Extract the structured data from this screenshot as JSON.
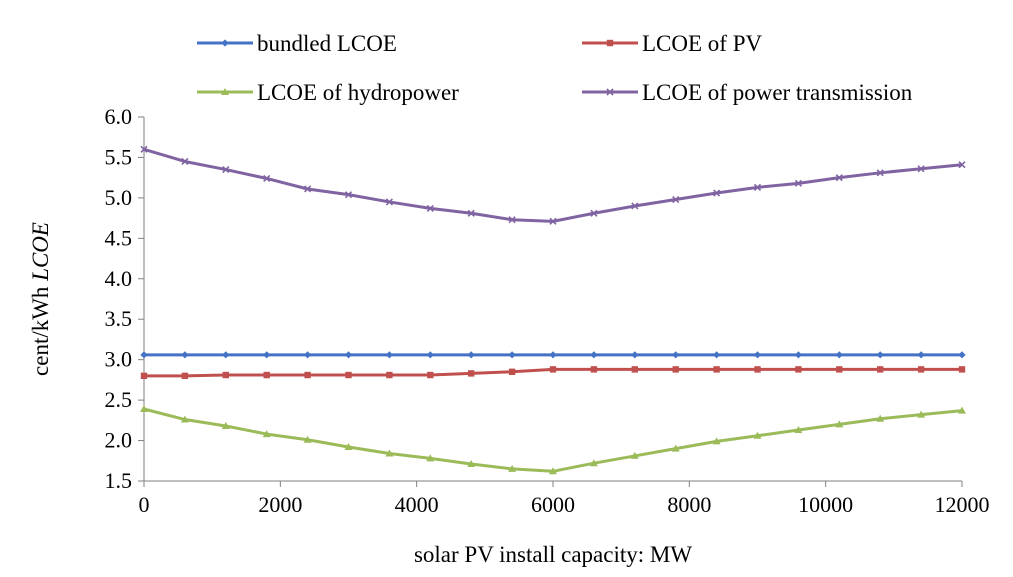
{
  "chart_data": {
    "type": "line",
    "title": "",
    "xlabel": "solar PV install capacity: MW",
    "ylabel_prefix": "cent/kWh ",
    "ylabel_italic": "LCOE",
    "x": [
      0,
      600,
      1200,
      1800,
      2400,
      3000,
      3600,
      4200,
      4800,
      5400,
      6000,
      6600,
      7200,
      7800,
      8400,
      9000,
      9600,
      10200,
      10800,
      11400,
      12000
    ],
    "xlim": [
      0,
      12000
    ],
    "ylim": [
      1.5,
      6.0
    ],
    "xticks": [
      0,
      2000,
      4000,
      6000,
      8000,
      10000,
      12000
    ],
    "yticks": [
      "1.5",
      "2.0",
      "2.5",
      "3.0",
      "3.5",
      "4.0",
      "4.5",
      "5.0",
      "5.5",
      "6.0"
    ],
    "grid": false,
    "legend_position": "top",
    "series": [
      {
        "name": "bundled LCOE",
        "color": "#4472C4",
        "marker": "diamond",
        "values": [
          3.06,
          3.06,
          3.06,
          3.06,
          3.06,
          3.06,
          3.06,
          3.06,
          3.06,
          3.06,
          3.06,
          3.06,
          3.06,
          3.06,
          3.06,
          3.06,
          3.06,
          3.06,
          3.06,
          3.06,
          3.06
        ]
      },
      {
        "name": "LCOE of PV",
        "color": "#C0504D",
        "marker": "square",
        "values": [
          2.8,
          2.8,
          2.81,
          2.81,
          2.81,
          2.81,
          2.81,
          2.81,
          2.83,
          2.85,
          2.88,
          2.88,
          2.88,
          2.88,
          2.88,
          2.88,
          2.88,
          2.88,
          2.88,
          2.88,
          2.88
        ]
      },
      {
        "name": "LCOE of hydropower",
        "color": "#9BBB59",
        "marker": "triangle",
        "values": [
          2.39,
          2.26,
          2.18,
          2.08,
          2.01,
          1.92,
          1.84,
          1.78,
          1.71,
          1.65,
          1.62,
          1.72,
          1.81,
          1.9,
          1.99,
          2.06,
          2.13,
          2.2,
          2.27,
          2.32,
          2.37
        ]
      },
      {
        "name": "LCOE of power transmission",
        "color": "#8064A2",
        "marker": "x",
        "values": [
          5.6,
          5.45,
          5.35,
          5.24,
          5.11,
          5.04,
          4.95,
          4.87,
          4.81,
          4.73,
          4.71,
          4.81,
          4.9,
          4.98,
          5.06,
          5.13,
          5.18,
          5.25,
          5.31,
          5.36,
          5.41
        ]
      }
    ]
  }
}
